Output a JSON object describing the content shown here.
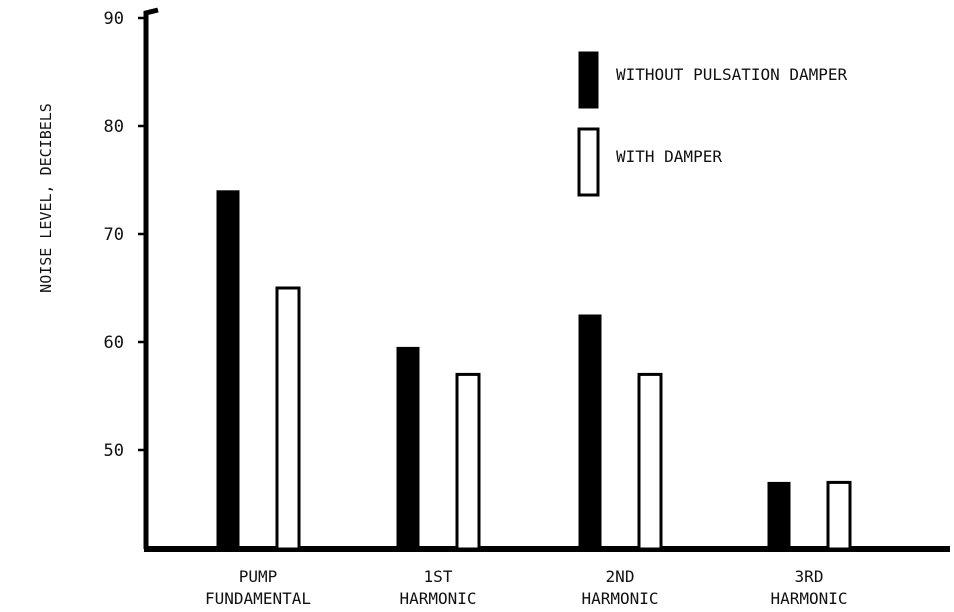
{
  "chart_data": {
    "type": "bar",
    "categories": [
      [
        "PUMP",
        "FUNDAMENTAL"
      ],
      [
        "1ST",
        "HARMONIC"
      ],
      [
        "2ND",
        "HARMONIC"
      ],
      [
        "3RD",
        "HARMONIC"
      ]
    ],
    "series": [
      {
        "name": "WITHOUT PULSATION DAMPER",
        "values": [
          74,
          59.5,
          62.5,
          47
        ],
        "fill": "#000000"
      },
      {
        "name": "WITH DAMPER",
        "values": [
          65,
          57,
          57,
          47
        ],
        "fill": "#ffffff"
      }
    ],
    "ylabel": "NOISE LEVEL, DECIBELS",
    "xlabel": "",
    "yticks": [
      50,
      60,
      70,
      80,
      90
    ],
    "ylim": [
      40,
      90
    ],
    "grid": false,
    "legend": "top-right"
  }
}
